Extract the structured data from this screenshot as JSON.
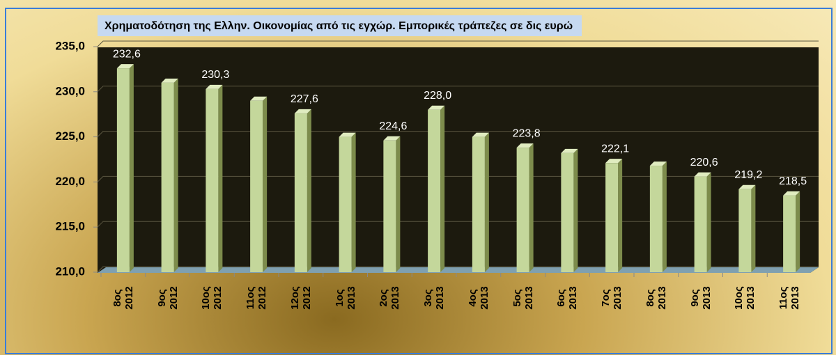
{
  "chart_data": {
    "type": "bar",
    "title": "Χρηματοδότηση της Ελλην. Οικονομίας από τις εγχώρ. Εμπορικές τράπεζες σε δις ευρώ",
    "categories": [
      "8ος\n2012",
      "9ος\n2012",
      "10ος\n2012",
      "11ος\n2012",
      "12ος\n2012",
      "1ος\n2013",
      "2ος\n2013",
      "3ος\n2013",
      "4ος\n2013",
      "5ος\n2013",
      "6ος\n2013",
      "7ος\n2013",
      "8ος\n2013",
      "9ος\n2013",
      "10ος\n2013",
      "11ος\n2013"
    ],
    "values": [
      232.6,
      231.0,
      230.3,
      229.0,
      227.6,
      225.0,
      224.6,
      228.0,
      225.0,
      223.8,
      223.2,
      222.1,
      221.8,
      220.6,
      219.2,
      218.5
    ],
    "value_labels": [
      "232,6",
      null,
      "230,3",
      null,
      "227,6",
      null,
      "224,6",
      "228,0",
      null,
      "223,8",
      null,
      "222,1",
      null,
      "220,6",
      "219,2",
      "218,5"
    ],
    "color": "#c4d79b",
    "ylim": [
      210,
      235
    ],
    "yticks": [
      {
        "value": 210,
        "label": "210,0"
      },
      {
        "value": 215,
        "label": "215,0"
      },
      {
        "value": 220,
        "label": "220,0"
      },
      {
        "value": 225,
        "label": "225,0"
      },
      {
        "value": 230,
        "label": "230,0"
      },
      {
        "value": 235,
        "label": "235,0"
      }
    ],
    "grid": true
  }
}
